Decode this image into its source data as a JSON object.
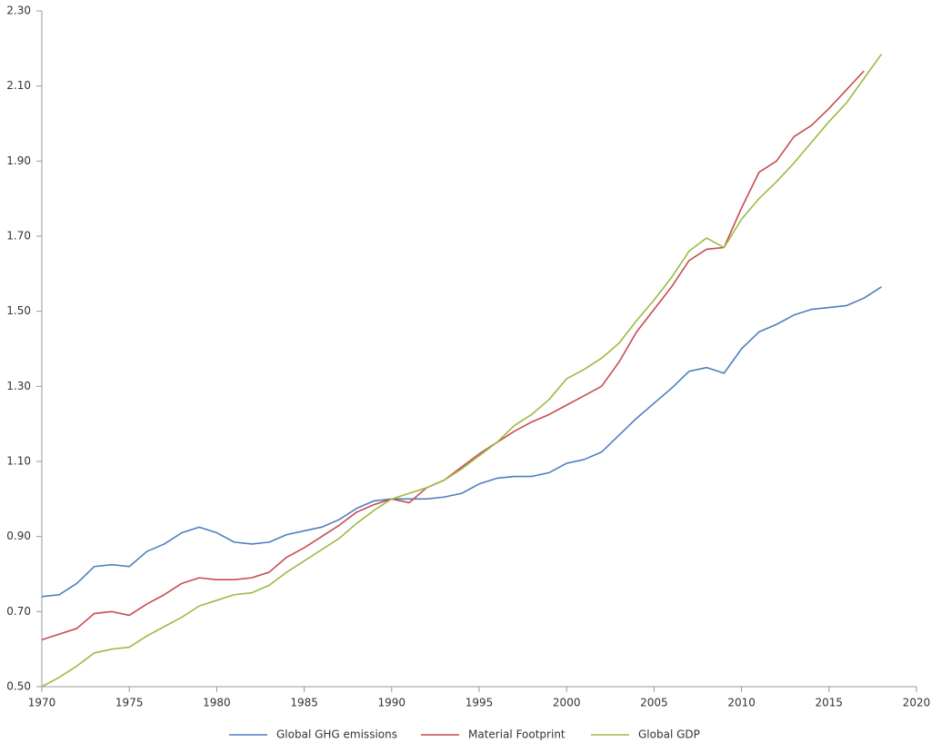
{
  "chart_data": {
    "type": "line",
    "x": [
      1970,
      1971,
      1972,
      1973,
      1974,
      1975,
      1976,
      1977,
      1978,
      1979,
      1980,
      1981,
      1982,
      1983,
      1984,
      1985,
      1986,
      1987,
      1988,
      1989,
      1990,
      1991,
      1992,
      1993,
      1994,
      1995,
      1996,
      1997,
      1998,
      1999,
      2000,
      2001,
      2002,
      2003,
      2004,
      2005,
      2006,
      2007,
      2008,
      2009,
      2010,
      2011,
      2012,
      2013,
      2014,
      2015,
      2016,
      2017,
      2018
    ],
    "series": [
      {
        "name": "Global GHG emissions",
        "color": "#4e7ebf",
        "values": [
          0.74,
          0.745,
          0.775,
          0.82,
          0.825,
          0.82,
          0.86,
          0.88,
          0.91,
          0.925,
          0.91,
          0.885,
          0.88,
          0.885,
          0.905,
          0.915,
          0.925,
          0.945,
          0.975,
          0.995,
          1.0,
          1.0,
          1.0,
          1.005,
          1.015,
          1.04,
          1.055,
          1.06,
          1.06,
          1.07,
          1.095,
          1.105,
          1.125,
          1.17,
          1.215,
          1.255,
          1.295,
          1.34,
          1.35,
          1.335,
          1.4,
          1.445,
          1.465,
          1.49,
          1.505,
          1.51,
          1.515,
          1.535,
          1.565
        ]
      },
      {
        "name": "Material Footprint",
        "color": "#c84b4f",
        "values": [
          0.625,
          0.64,
          0.655,
          0.695,
          0.7,
          0.69,
          0.72,
          0.745,
          0.775,
          0.79,
          0.785,
          0.785,
          0.79,
          0.805,
          0.845,
          0.87,
          0.9,
          0.93,
          0.965,
          0.985,
          1.0,
          0.99,
          1.03,
          1.05,
          1.085,
          1.12,
          1.15,
          1.18,
          1.205,
          1.225,
          1.25,
          1.275,
          1.3,
          1.365,
          1.445,
          1.505,
          1.565,
          1.635,
          1.665,
          1.67,
          1.775,
          1.87,
          1.9,
          1.965,
          1.995,
          2.04,
          2.09,
          2.14,
          null
        ]
      },
      {
        "name": "Global GDP",
        "color": "#9bbb43",
        "values": [
          0.5,
          0.525,
          0.555,
          0.59,
          0.6,
          0.605,
          0.635,
          0.66,
          0.685,
          0.715,
          0.73,
          0.745,
          0.75,
          0.77,
          0.805,
          0.835,
          0.865,
          0.895,
          0.935,
          0.97,
          1.0,
          1.015,
          1.03,
          1.05,
          1.08,
          1.115,
          1.15,
          1.195,
          1.225,
          1.265,
          1.32,
          1.345,
          1.375,
          1.415,
          1.475,
          1.53,
          1.59,
          1.66,
          1.695,
          1.67,
          1.745,
          1.8,
          1.845,
          1.895,
          1.95,
          2.005,
          2.055,
          2.12,
          2.185
        ]
      }
    ],
    "xlim": [
      1970,
      2020
    ],
    "xticks": [
      1970,
      1975,
      1980,
      1985,
      1990,
      1995,
      2000,
      2005,
      2010,
      2015,
      2020
    ],
    "ylim": [
      0.5,
      2.3
    ],
    "yticks": [
      {
        "value": 0.5,
        "label": "0.50"
      },
      {
        "value": 0.7,
        "label": "0.70"
      },
      {
        "value": 0.9,
        "label": "0.90"
      },
      {
        "value": 1.1,
        "label": "1.10"
      },
      {
        "value": 1.3,
        "label": "1.30"
      },
      {
        "value": 1.5,
        "label": "1.50"
      },
      {
        "value": 1.7,
        "label": "1.70"
      },
      {
        "value": 1.9,
        "label": "1.90"
      },
      {
        "value": 2.1,
        "label": "2.10"
      },
      {
        "value": 2.3,
        "label": "2.30"
      }
    ],
    "grid": false
  }
}
